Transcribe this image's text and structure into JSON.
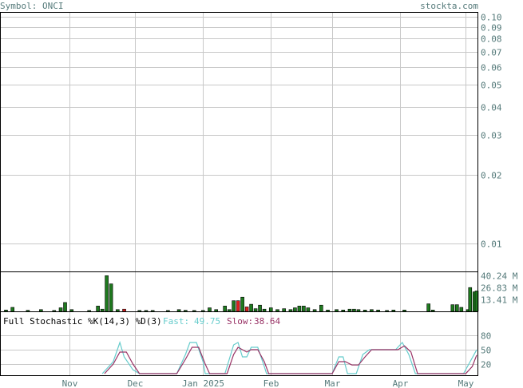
{
  "header": {
    "symbol_label": "Symbol: ONCI",
    "site": "stockta.com"
  },
  "colors": {
    "frame": "#000000",
    "grid": "#c8c8c8",
    "axis_text": "#557a7a",
    "volume_up": "#1f7a1f",
    "volume_down": "#e02020",
    "fast_line": "#66cccc",
    "slow_line": "#993366"
  },
  "chart_data": [
    {
      "type": "line",
      "panel": "price",
      "scale": "log",
      "ylim": [
        0.0075,
        0.105
      ],
      "y_ticks": [
        {
          "value": 0.1,
          "label": "0.10"
        },
        {
          "value": 0.09,
          "label": "0.09"
        },
        {
          "value": 0.08,
          "label": "0.08"
        },
        {
          "value": 0.07,
          "label": "0.07"
        },
        {
          "value": 0.06,
          "label": "0.06"
        },
        {
          "value": 0.05,
          "label": "0.05"
        },
        {
          "value": 0.04,
          "label": "0.04"
        },
        {
          "value": 0.03,
          "label": "0.03"
        },
        {
          "value": 0.02,
          "label": "0.02"
        },
        {
          "value": 0.01,
          "label": "0.01"
        }
      ],
      "x_ticks": [
        {
          "label": "Nov",
          "day": 31
        },
        {
          "label": "Dec",
          "day": 61
        },
        {
          "label": "Jan 2025",
          "day": 92
        },
        {
          "label": "Feb",
          "day": 123
        },
        {
          "label": "Mar",
          "day": 151
        },
        {
          "label": "Apr",
          "day": 182
        },
        {
          "label": "May",
          "day": 212
        }
      ],
      "x_range": [
        0,
        217
      ],
      "series": []
    },
    {
      "type": "bar",
      "panel": "volume",
      "unit": "M",
      "ylim": [
        0,
        45
      ],
      "y_ticks": [
        {
          "value": 40.24,
          "label": "40.24 M"
        },
        {
          "value": 26.83,
          "label": "26.83 M"
        },
        {
          "value": 13.41,
          "label": "13.41 M"
        }
      ],
      "bars": [
        {
          "day": 2,
          "value": 1.5,
          "dir": "up"
        },
        {
          "day": 5,
          "value": 4.5,
          "dir": "up"
        },
        {
          "day": 12,
          "value": 1.2,
          "dir": "up"
        },
        {
          "day": 18,
          "value": 2.0,
          "dir": "up"
        },
        {
          "day": 24,
          "value": 1.0,
          "dir": "up"
        },
        {
          "day": 27,
          "value": 4.0,
          "dir": "up"
        },
        {
          "day": 29,
          "value": 10.0,
          "dir": "up"
        },
        {
          "day": 32,
          "value": 2.0,
          "dir": "up"
        },
        {
          "day": 40,
          "value": 1.0,
          "dir": "up"
        },
        {
          "day": 44,
          "value": 6.0,
          "dir": "up"
        },
        {
          "day": 46,
          "value": 2.5,
          "dir": "up"
        },
        {
          "day": 48,
          "value": 40.24,
          "dir": "up"
        },
        {
          "day": 50,
          "value": 31.0,
          "dir": "up"
        },
        {
          "day": 53,
          "value": 2.0,
          "dir": "up"
        },
        {
          "day": 56,
          "value": 2.5,
          "dir": "down"
        },
        {
          "day": 63,
          "value": 1.0,
          "dir": "up"
        },
        {
          "day": 66,
          "value": 1.0,
          "dir": "up"
        },
        {
          "day": 69,
          "value": 1.0,
          "dir": "up"
        },
        {
          "day": 76,
          "value": 1.0,
          "dir": "up"
        },
        {
          "day": 81,
          "value": 2.0,
          "dir": "up"
        },
        {
          "day": 84,
          "value": 1.2,
          "dir": "up"
        },
        {
          "day": 88,
          "value": 1.0,
          "dir": "up"
        },
        {
          "day": 92,
          "value": 1.0,
          "dir": "up"
        },
        {
          "day": 95,
          "value": 4.0,
          "dir": "up"
        },
        {
          "day": 98,
          "value": 2.0,
          "dir": "up"
        },
        {
          "day": 102,
          "value": 6.0,
          "dir": "up"
        },
        {
          "day": 104,
          "value": 2.0,
          "dir": "up"
        },
        {
          "day": 106,
          "value": 12.0,
          "dir": "up"
        },
        {
          "day": 108,
          "value": 12.0,
          "dir": "down"
        },
        {
          "day": 110,
          "value": 16.0,
          "dir": "up"
        },
        {
          "day": 112,
          "value": 5.0,
          "dir": "down"
        },
        {
          "day": 114,
          "value": 8.0,
          "dir": "up"
        },
        {
          "day": 116,
          "value": 3.0,
          "dir": "up"
        },
        {
          "day": 118,
          "value": 7.0,
          "dir": "up"
        },
        {
          "day": 120,
          "value": 2.5,
          "dir": "up"
        },
        {
          "day": 123,
          "value": 4.0,
          "dir": "up"
        },
        {
          "day": 126,
          "value": 2.0,
          "dir": "up"
        },
        {
          "day": 129,
          "value": 3.0,
          "dir": "up"
        },
        {
          "day": 132,
          "value": 2.0,
          "dir": "up"
        },
        {
          "day": 134,
          "value": 4.0,
          "dir": "up"
        },
        {
          "day": 136,
          "value": 6.0,
          "dir": "up"
        },
        {
          "day": 138,
          "value": 6.0,
          "dir": "up"
        },
        {
          "day": 140,
          "value": 4.0,
          "dir": "up"
        },
        {
          "day": 143,
          "value": 2.0,
          "dir": "up"
        },
        {
          "day": 146,
          "value": 7.0,
          "dir": "up"
        },
        {
          "day": 149,
          "value": 1.5,
          "dir": "up"
        },
        {
          "day": 153,
          "value": 2.0,
          "dir": "up"
        },
        {
          "day": 156,
          "value": 1.5,
          "dir": "up"
        },
        {
          "day": 159,
          "value": 2.5,
          "dir": "up"
        },
        {
          "day": 161,
          "value": 2.5,
          "dir": "up"
        },
        {
          "day": 163,
          "value": 2.0,
          "dir": "up"
        },
        {
          "day": 166,
          "value": 1.5,
          "dir": "up"
        },
        {
          "day": 169,
          "value": 2.0,
          "dir": "up"
        },
        {
          "day": 172,
          "value": 1.5,
          "dir": "up"
        },
        {
          "day": 176,
          "value": 1.0,
          "dir": "up"
        },
        {
          "day": 179,
          "value": 1.5,
          "dir": "up"
        },
        {
          "day": 184,
          "value": 1.5,
          "dir": "up"
        },
        {
          "day": 195,
          "value": 8.5,
          "dir": "up"
        },
        {
          "day": 197,
          "value": 1.5,
          "dir": "up"
        },
        {
          "day": 206,
          "value": 7.5,
          "dir": "up"
        },
        {
          "day": 208,
          "value": 7.5,
          "dir": "up"
        },
        {
          "day": 210,
          "value": 4.5,
          "dir": "up"
        },
        {
          "day": 213,
          "value": 2.0,
          "dir": "up"
        },
        {
          "day": 214,
          "value": 26.83,
          "dir": "up"
        },
        {
          "day": 216,
          "value": 22.0,
          "dir": "up"
        },
        {
          "day": 217,
          "value": 23.0,
          "dir": "up"
        }
      ]
    },
    {
      "type": "line",
      "panel": "stochastic",
      "title": "Full Stochastic %K(14,3) %D(3)",
      "fast_label": "Fast:",
      "fast_value": "49.75",
      "slow_label": "Slow:",
      "slow_value": "38.64",
      "ylim": [
        0,
        100
      ],
      "y_ticks": [
        {
          "value": 80,
          "label": "80"
        },
        {
          "value": 50,
          "label": "50"
        },
        {
          "value": 20,
          "label": "20"
        }
      ],
      "series": [
        {
          "key": "fast",
          "points": [
            [
              46,
              0
            ],
            [
              51,
              25
            ],
            [
              54,
              65
            ],
            [
              56,
              35
            ],
            [
              60,
              8
            ],
            [
              63,
              0
            ],
            [
              80,
              0
            ],
            [
              84,
              40
            ],
            [
              86,
              65
            ],
            [
              89,
              65
            ],
            [
              92,
              25
            ],
            [
              93,
              0
            ],
            [
              102,
              0
            ],
            [
              106,
              60
            ],
            [
              108,
              65
            ],
            [
              110,
              35
            ],
            [
              112,
              35
            ],
            [
              114,
              55
            ],
            [
              117,
              55
            ],
            [
              120,
              15
            ],
            [
              121,
              0
            ],
            [
              151,
              0
            ],
            [
              154,
              35
            ],
            [
              156,
              35
            ],
            [
              158,
              0
            ],
            [
              162,
              0
            ],
            [
              165,
              40
            ],
            [
              168,
              50
            ],
            [
              180,
              50
            ],
            [
              183,
              65
            ],
            [
              186,
              40
            ],
            [
              189,
              0
            ],
            [
              211,
              0
            ],
            [
              214,
              25
            ],
            [
              217,
              49.75
            ]
          ]
        },
        {
          "key": "slow",
          "points": [
            [
              47,
              0
            ],
            [
              51,
              20
            ],
            [
              54,
              45
            ],
            [
              57,
              45
            ],
            [
              60,
              20
            ],
            [
              63,
              0
            ],
            [
              80,
              0
            ],
            [
              84,
              30
            ],
            [
              87,
              55
            ],
            [
              90,
              55
            ],
            [
              93,
              20
            ],
            [
              95,
              0
            ],
            [
              103,
              0
            ],
            [
              106,
              40
            ],
            [
              108,
              55
            ],
            [
              110,
              50
            ],
            [
              112,
              45
            ],
            [
              114,
              50
            ],
            [
              117,
              50
            ],
            [
              120,
              25
            ],
            [
              122,
              0
            ],
            [
              151,
              0
            ],
            [
              154,
              25
            ],
            [
              157,
              25
            ],
            [
              160,
              18
            ],
            [
              163,
              18
            ],
            [
              166,
              35
            ],
            [
              169,
              50
            ],
            [
              181,
              50
            ],
            [
              184,
              58
            ],
            [
              187,
              45
            ],
            [
              190,
              0
            ],
            [
              212,
              0
            ],
            [
              215,
              15
            ],
            [
              217,
              38.64
            ]
          ]
        }
      ]
    }
  ]
}
